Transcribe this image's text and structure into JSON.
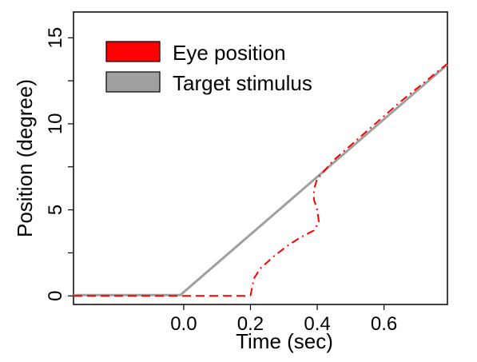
{
  "chart_data": {
    "type": "line",
    "title": "",
    "xlabel": "Time (sec)",
    "ylabel": "Position  (degree)",
    "xlim": [
      -0.33,
      0.79
    ],
    "ylim": [
      -0.5,
      16.5
    ],
    "x_ticks": [
      0.0,
      0.2,
      0.4,
      0.6
    ],
    "x_tick_labels": [
      "0.0",
      "0.2",
      "0.4",
      "0.6"
    ],
    "y_ticks": [
      0,
      5,
      10,
      15
    ],
    "y_tick_labels": [
      "0",
      "5",
      "10",
      "15"
    ],
    "y_minor_ticks": [
      2.5,
      7.5,
      12.5
    ],
    "grid": false,
    "legend": {
      "position": "top-left"
    },
    "series": [
      {
        "name": "Target stimulus",
        "color": "#a0a0a0",
        "style": "solid",
        "x": [
          -0.33,
          -0.01,
          0.79
        ],
        "y": [
          0.05,
          0.05,
          13.45
        ]
      },
      {
        "name": "Eye position",
        "color": "#ff0000",
        "style": "dashed",
        "x": [
          -0.33,
          0.2
        ],
        "y": [
          0,
          0
        ]
      },
      {
        "name": "",
        "color": "#ff0000",
        "style": "dashdot",
        "x": [
          0.2,
          0.21,
          0.23,
          0.27,
          0.31,
          0.35,
          0.39,
          0.405,
          0.4,
          0.39,
          0.39,
          0.4,
          0.45,
          0.55,
          0.65,
          0.79
        ],
        "y": [
          0,
          1.0,
          1.6,
          2.3,
          2.9,
          3.4,
          3.8,
          4.3,
          5.0,
          5.6,
          6.2,
          6.8,
          7.9,
          9.6,
          11.3,
          13.5
        ]
      }
    ]
  }
}
